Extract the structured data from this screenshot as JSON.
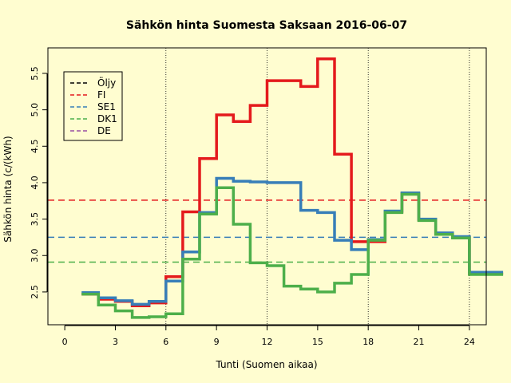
{
  "chart_data": {
    "type": "line",
    "title": "Sähkön hinta Suomesta Saksaan 2016-06-07",
    "xlabel": "Tunti (Suomen aikaa)",
    "ylabel": "Sähkön hinta (c/(kWh)",
    "xlim": [
      -1,
      25
    ],
    "ylim": [
      2.05,
      5.85
    ],
    "xticks": [
      0,
      3,
      6,
      9,
      12,
      15,
      18,
      21,
      24
    ],
    "yticks": [
      2.5,
      3.0,
      3.5,
      4.0,
      4.5,
      5.0,
      5.5
    ],
    "vlines": [
      6,
      12,
      18,
      24
    ],
    "hours": [
      1,
      2,
      3,
      4,
      5,
      6,
      7,
      8,
      9,
      10,
      11,
      12,
      13,
      14,
      15,
      16,
      17,
      18,
      19,
      20,
      21,
      22,
      23,
      24,
      25
    ],
    "series": [
      {
        "name": "Öljy",
        "color": "#000000",
        "values": []
      },
      {
        "name": "FI",
        "color": "#e41a1c",
        "mean": 3.76,
        "values": [
          2.47,
          2.4,
          2.37,
          2.31,
          2.35,
          2.71,
          3.6,
          4.33,
          4.93,
          4.84,
          5.06,
          5.4,
          5.4,
          5.32,
          5.7,
          4.39,
          3.19,
          3.19,
          3.6,
          3.85,
          3.49,
          3.29,
          3.25,
          2.75,
          2.75
        ]
      },
      {
        "name": "SE1",
        "color": "#377eb8",
        "mean": 3.25,
        "values": [
          2.49,
          2.42,
          2.38,
          2.33,
          2.37,
          2.65,
          3.05,
          3.59,
          4.06,
          4.02,
          4.01,
          4.0,
          4.0,
          3.62,
          3.59,
          3.21,
          3.08,
          3.22,
          3.61,
          3.86,
          3.5,
          3.31,
          3.26,
          2.77,
          2.77
        ]
      },
      {
        "name": "DK1",
        "color": "#4daf4a",
        "mean": 2.91,
        "values": [
          2.47,
          2.32,
          2.24,
          2.15,
          2.16,
          2.2,
          2.95,
          3.57,
          3.93,
          3.43,
          2.9,
          2.86,
          2.58,
          2.54,
          2.5,
          2.62,
          2.74,
          3.21,
          3.59,
          3.84,
          3.48,
          3.29,
          3.24,
          2.74,
          2.74
        ]
      },
      {
        "name": "DE",
        "color": "#984ea3",
        "values": []
      }
    ]
  }
}
